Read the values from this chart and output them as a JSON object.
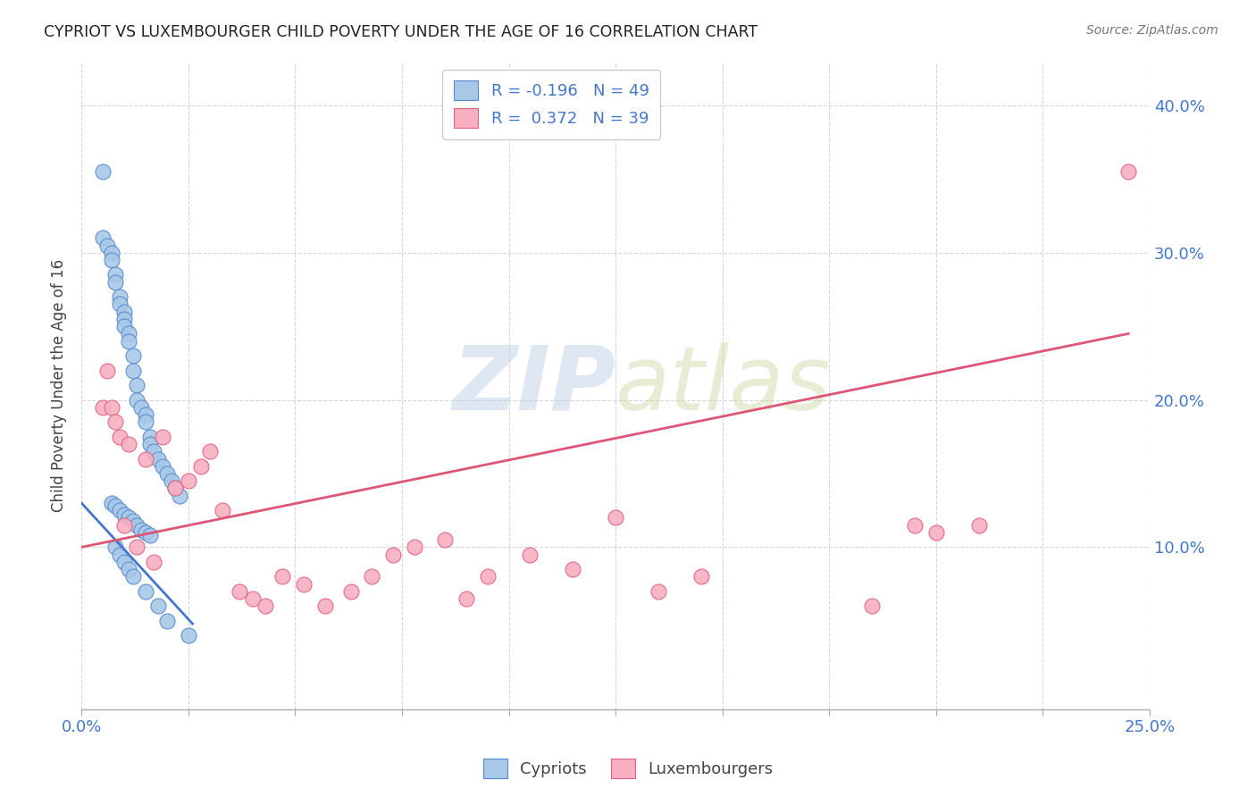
{
  "title": "CYPRIOT VS LUXEMBOURGER CHILD POVERTY UNDER THE AGE OF 16 CORRELATION CHART",
  "source": "Source: ZipAtlas.com",
  "ylabel": "Child Poverty Under the Age of 16",
  "ylabel_right_ticks": [
    "10.0%",
    "20.0%",
    "30.0%",
    "40.0%"
  ],
  "ylabel_right_vals": [
    0.1,
    0.2,
    0.3,
    0.4
  ],
  "xlim": [
    0.0,
    0.25
  ],
  "ylim": [
    -0.01,
    0.43
  ],
  "legend_line1": "R = -0.196   N = 49",
  "legend_line2": "R =  0.372   N = 39",
  "cypriot_color": "#a8c8e8",
  "luxembourger_color": "#f8b0c0",
  "cypriot_edge_color": "#5588cc",
  "luxembourger_edge_color": "#e06080",
  "cypriot_line_color": "#4477cc",
  "luxembourger_line_color": "#dd5577",
  "tick_label_color": "#4477cc",
  "watermark_color": "#ccddf0",
  "cypriot_scatter_x": [
    0.005,
    0.005,
    0.006,
    0.007,
    0.007,
    0.008,
    0.008,
    0.009,
    0.009,
    0.01,
    0.01,
    0.01,
    0.011,
    0.011,
    0.012,
    0.012,
    0.013,
    0.013,
    0.014,
    0.015,
    0.015,
    0.016,
    0.016,
    0.017,
    0.018,
    0.019,
    0.02,
    0.021,
    0.022,
    0.023,
    0.007,
    0.008,
    0.009,
    0.01,
    0.011,
    0.012,
    0.013,
    0.014,
    0.015,
    0.016,
    0.008,
    0.009,
    0.01,
    0.011,
    0.012,
    0.015,
    0.018,
    0.02,
    0.025
  ],
  "cypriot_scatter_y": [
    0.355,
    0.31,
    0.305,
    0.3,
    0.295,
    0.285,
    0.28,
    0.27,
    0.265,
    0.26,
    0.255,
    0.25,
    0.245,
    0.24,
    0.23,
    0.22,
    0.21,
    0.2,
    0.195,
    0.19,
    0.185,
    0.175,
    0.17,
    0.165,
    0.16,
    0.155,
    0.15,
    0.145,
    0.14,
    0.135,
    0.13,
    0.128,
    0.125,
    0.122,
    0.12,
    0.118,
    0.115,
    0.112,
    0.11,
    0.108,
    0.1,
    0.095,
    0.09,
    0.085,
    0.08,
    0.07,
    0.06,
    0.05,
    0.04
  ],
  "luxembourger_scatter_x": [
    0.005,
    0.006,
    0.007,
    0.008,
    0.009,
    0.01,
    0.011,
    0.013,
    0.015,
    0.017,
    0.019,
    0.022,
    0.025,
    0.028,
    0.03,
    0.033,
    0.037,
    0.04,
    0.043,
    0.047,
    0.052,
    0.057,
    0.063,
    0.068,
    0.073,
    0.078,
    0.085,
    0.09,
    0.095,
    0.105,
    0.115,
    0.125,
    0.135,
    0.145,
    0.185,
    0.195,
    0.2,
    0.21,
    0.245
  ],
  "luxembourger_scatter_y": [
    0.195,
    0.22,
    0.195,
    0.185,
    0.175,
    0.115,
    0.17,
    0.1,
    0.16,
    0.09,
    0.175,
    0.14,
    0.145,
    0.155,
    0.165,
    0.125,
    0.07,
    0.065,
    0.06,
    0.08,
    0.075,
    0.06,
    0.07,
    0.08,
    0.095,
    0.1,
    0.105,
    0.065,
    0.08,
    0.095,
    0.085,
    0.12,
    0.07,
    0.08,
    0.06,
    0.115,
    0.11,
    0.115,
    0.355
  ],
  "cypriot_trend_x": [
    0.0,
    0.026
  ],
  "cypriot_trend_y": [
    0.13,
    0.048
  ],
  "luxembourger_trend_x": [
    0.0,
    0.245
  ],
  "luxembourger_trend_y": [
    0.1,
    0.245
  ]
}
